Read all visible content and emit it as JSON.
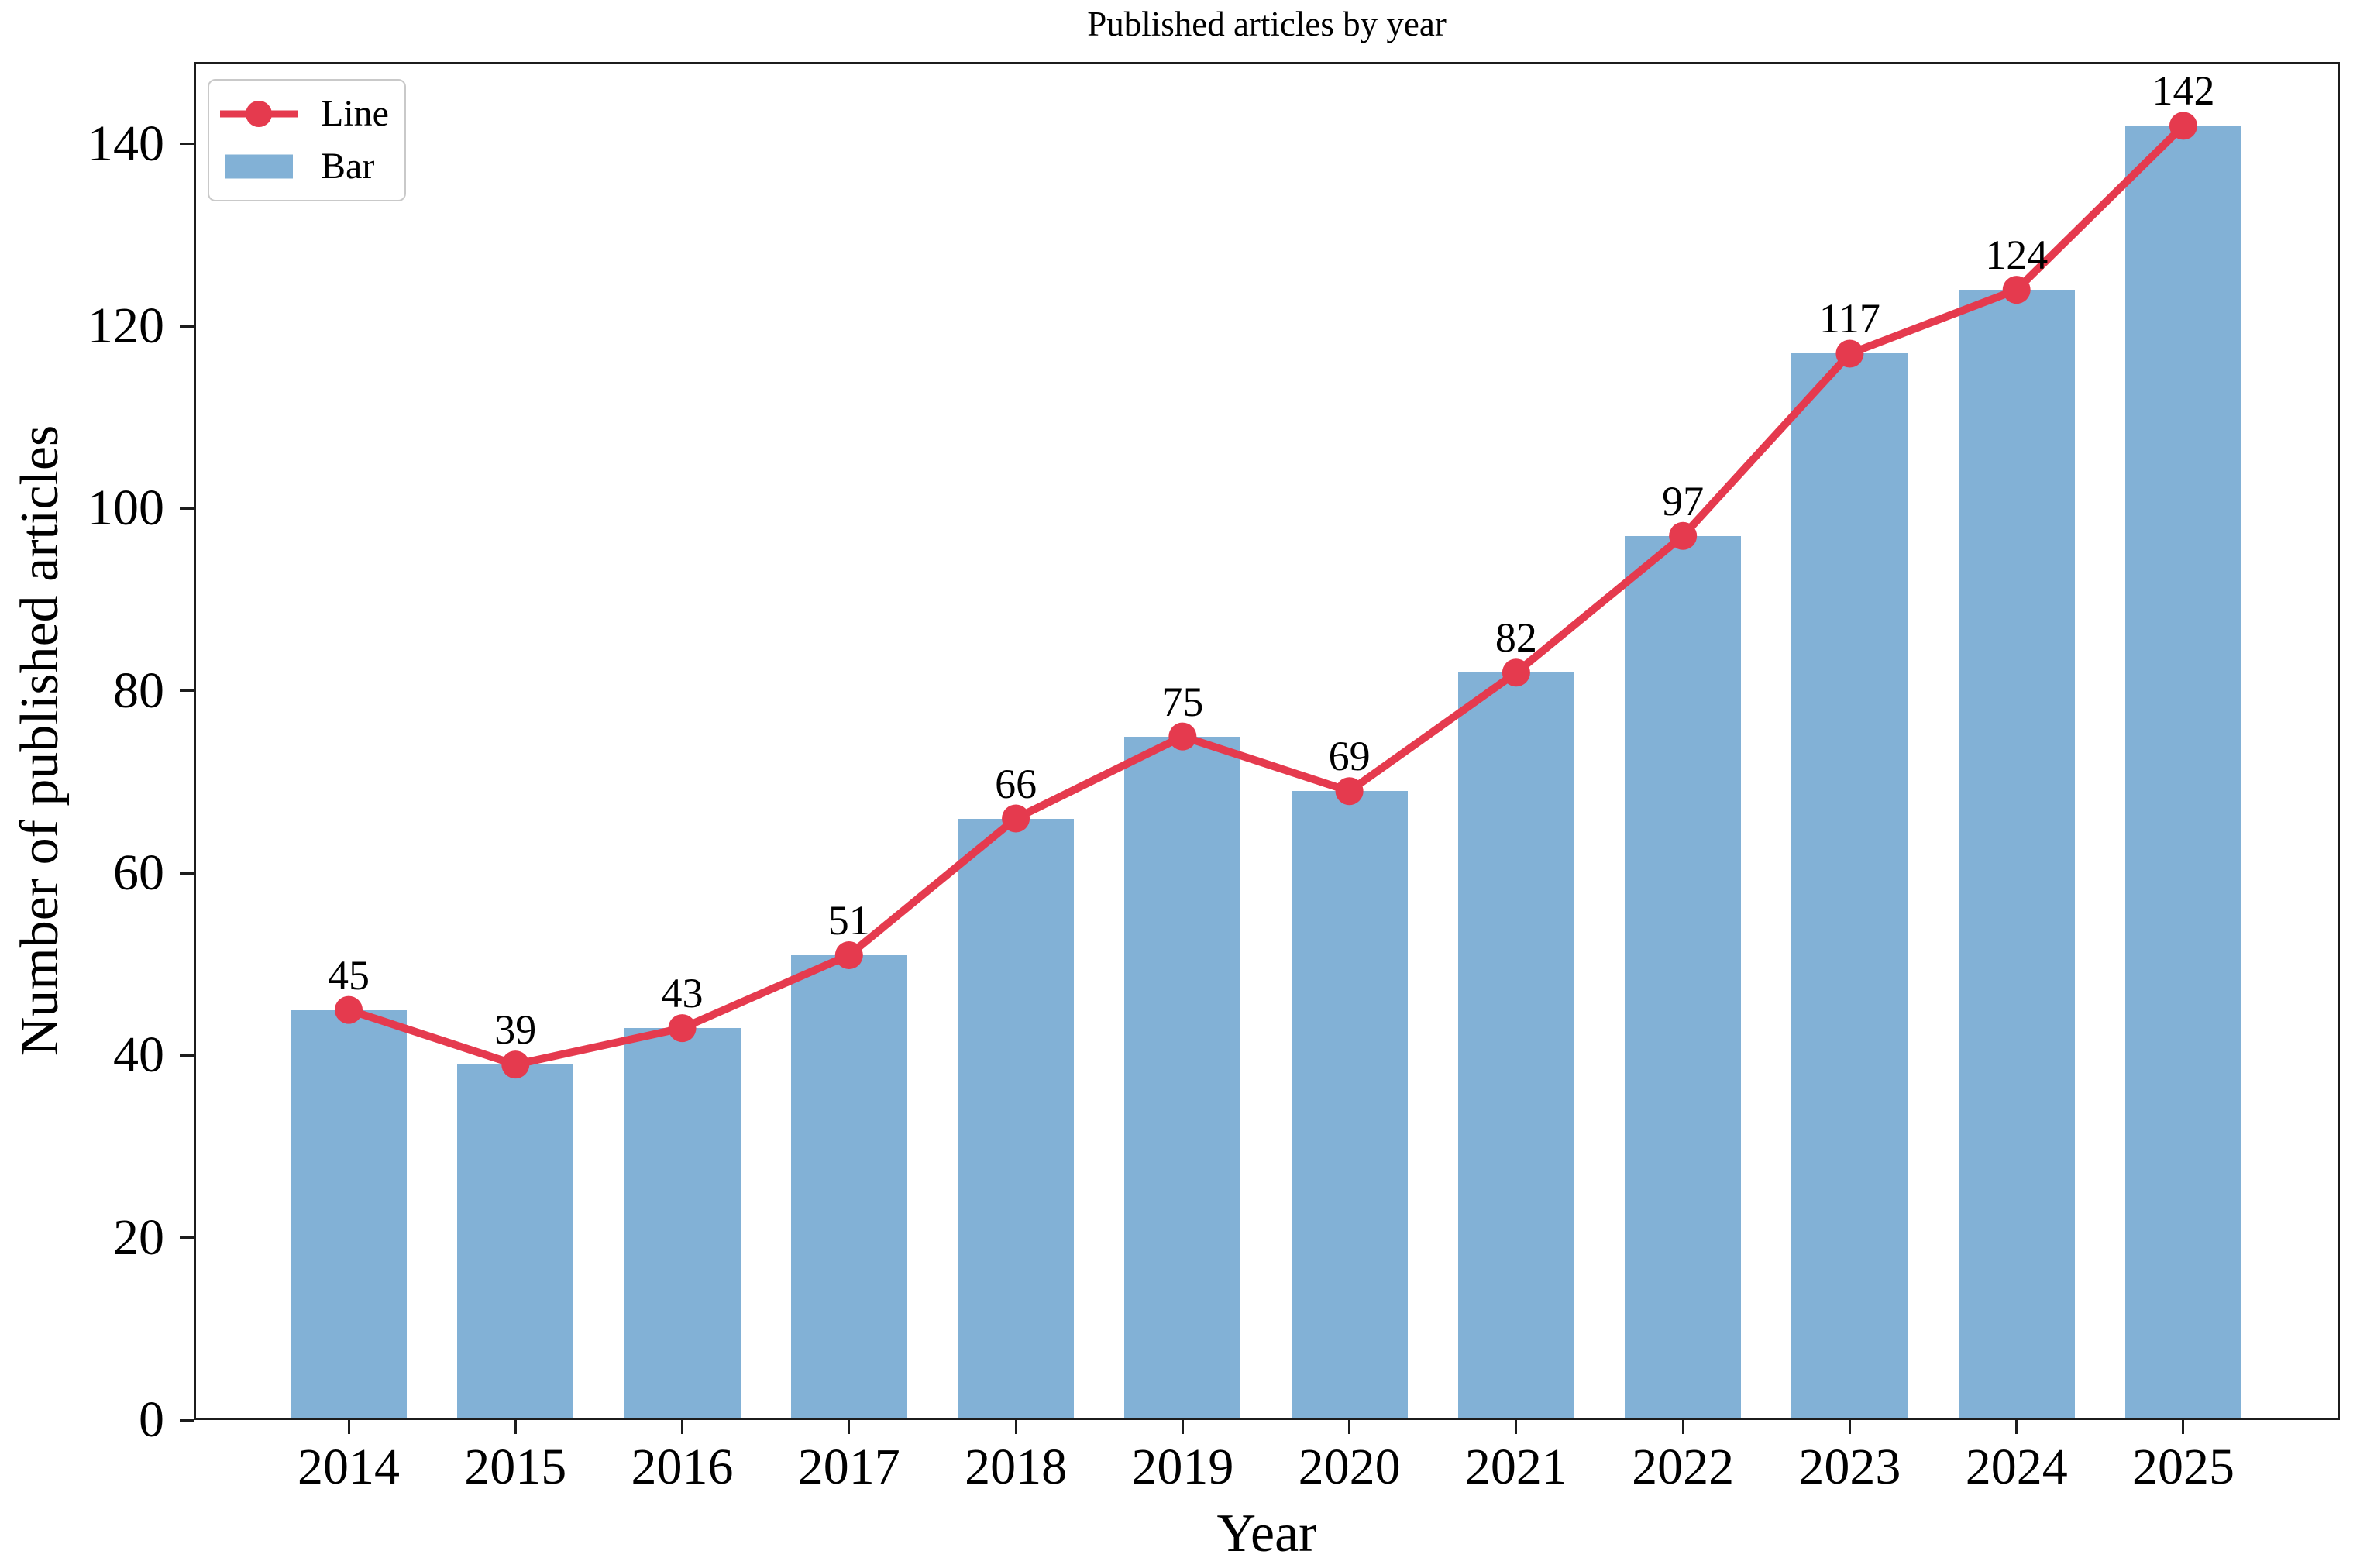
{
  "chart_data": {
    "type": "bar",
    "title": "Published articles by year",
    "xlabel": "Year",
    "ylabel": "Number of published articles",
    "categories": [
      "2014",
      "2015",
      "2016",
      "2017",
      "2018",
      "2019",
      "2020",
      "2021",
      "2022",
      "2023",
      "2024",
      "2025"
    ],
    "values": [
      45,
      39,
      43,
      51,
      66,
      75,
      69,
      82,
      97,
      117,
      124,
      142
    ],
    "series": [
      {
        "name": "Line",
        "type": "line",
        "values": [
          45,
          39,
          43,
          51,
          66,
          75,
          69,
          82,
          97,
          117,
          124,
          142
        ]
      },
      {
        "name": "Bar",
        "type": "bar",
        "values": [
          45,
          39,
          43,
          51,
          66,
          75,
          69,
          82,
          97,
          117,
          124,
          142
        ]
      }
    ],
    "data_labels": [
      45,
      39,
      43,
      51,
      66,
      75,
      69,
      82,
      97,
      117,
      124,
      142
    ],
    "yticks": [
      0,
      20,
      40,
      60,
      80,
      100,
      120,
      140
    ],
    "ylim": [
      0,
      149
    ],
    "grid": false,
    "legend_position": "upper-left",
    "colors": {
      "bar": "#82B1D6",
      "line": "#E53A4E",
      "axis": "#1c1c1c",
      "text": "#000000",
      "legend_border": "#c9c9c9"
    }
  }
}
